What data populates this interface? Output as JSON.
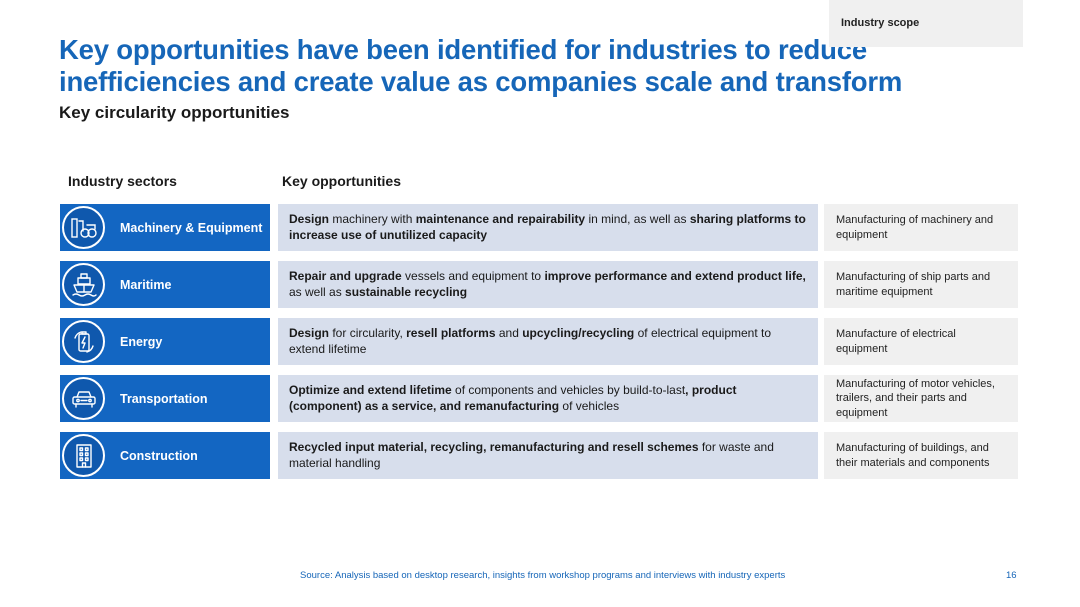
{
  "title": "Key opportunities have been identified for industries to reduce inefficiencies and create value as companies scale and transform",
  "subtitle": "Key circularity opportunities",
  "columns": {
    "sectors": "Industry sectors",
    "opportunities": "Key opportunities",
    "scope": "Industry scope"
  },
  "rows": [
    {
      "sector": "Machinery & Equipment",
      "icon": "machinery-icon",
      "opportunity": [
        {
          "t": "Design",
          "b": true
        },
        {
          "t": " machinery with ",
          "b": false
        },
        {
          "t": "maintenance and repairability",
          "b": true
        },
        {
          "t": " in mind, as well as ",
          "b": false
        },
        {
          "t": "sharing platforms to increase use of unutilized capacity",
          "b": true
        }
      ],
      "scope": "Manufacturing of machinery and equipment"
    },
    {
      "sector": "Maritime",
      "icon": "ship-icon",
      "opportunity": [
        {
          "t": "Repair and upgrade",
          "b": true
        },
        {
          "t": " vessels and equipment to ",
          "b": false
        },
        {
          "t": "improve performance and extend product life,",
          "b": true
        },
        {
          "t": " as well as ",
          "b": false
        },
        {
          "t": "sustainable recycling",
          "b": true
        }
      ],
      "scope": "Manufacturing of ship parts and maritime equipment"
    },
    {
      "sector": "Energy",
      "icon": "energy-icon",
      "opportunity": [
        {
          "t": "Design",
          "b": true
        },
        {
          "t": " for circularity, ",
          "b": false
        },
        {
          "t": "resell platforms",
          "b": true
        },
        {
          "t": " and ",
          "b": false
        },
        {
          "t": "upcycling/recycling",
          "b": true
        },
        {
          "t": " of electrical equipment to extend lifetime",
          "b": false
        }
      ],
      "scope": "Manufacture of electrical equipment"
    },
    {
      "sector": "Transportation",
      "icon": "car-icon",
      "opportunity": [
        {
          "t": "Optimize and extend lifetime",
          "b": true
        },
        {
          "t": " of components and vehicles by build-to-last",
          "b": false
        },
        {
          "t": ", product (component) as a service, and remanufacturing",
          "b": true
        },
        {
          "t": " of vehicles",
          "b": false
        }
      ],
      "scope": "Manufacturing of motor vehicles, trailers, and their parts and equipment"
    },
    {
      "sector": "Construction",
      "icon": "building-icon",
      "opportunity": [
        {
          "t": "Recycled input material, recycling, remanufacturing and resell schemes",
          "b": true
        },
        {
          "t": " for waste and material handling",
          "b": false
        }
      ],
      "scope": "Manufacturing of buildings, and their materials and components"
    }
  ],
  "source": "Source: Analysis based on desktop research, insights from workshop programs and interviews with industry experts",
  "page_number": "16",
  "colors": {
    "accent": "#1666b8",
    "sector_bg": "#1366c2",
    "opportunity_bg": "#d7deec",
    "scope_bg": "#f0f0f0"
  }
}
